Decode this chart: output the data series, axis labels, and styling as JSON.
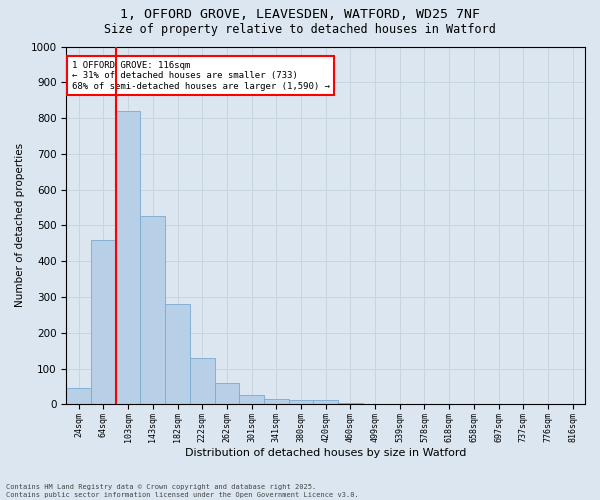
{
  "title_line1": "1, OFFORD GROVE, LEAVESDEN, WATFORD, WD25 7NF",
  "title_line2": "Size of property relative to detached houses in Watford",
  "xlabel": "Distribution of detached houses by size in Watford",
  "ylabel": "Number of detached properties",
  "bar_color": "#b8cfe8",
  "bar_edge_color": "#7aaad0",
  "grid_color": "#c8d4e0",
  "background_color": "#dce6f0",
  "property_line_color": "red",
  "annotation_text": "1 OFFORD GROVE: 116sqm\n← 31% of detached houses are smaller (733)\n68% of semi-detached houses are larger (1,590) →",
  "annotation_box_color": "white",
  "annotation_box_edge": "red",
  "footer_line1": "Contains HM Land Registry data © Crown copyright and database right 2025.",
  "footer_line2": "Contains public sector information licensed under the Open Government Licence v3.0.",
  "bin_labels": [
    "24sqm",
    "64sqm",
    "103sqm",
    "143sqm",
    "182sqm",
    "222sqm",
    "262sqm",
    "301sqm",
    "341sqm",
    "380sqm",
    "420sqm",
    "460sqm",
    "499sqm",
    "539sqm",
    "578sqm",
    "618sqm",
    "658sqm",
    "697sqm",
    "737sqm",
    "776sqm",
    "816sqm"
  ],
  "bar_values": [
    45,
    460,
    820,
    525,
    280,
    130,
    60,
    25,
    15,
    12,
    12,
    5,
    2,
    0,
    0,
    0,
    0,
    0,
    0,
    0,
    0
  ],
  "red_line_bin_idx": 2,
  "ylim": [
    0,
    1000
  ],
  "yticks": [
    0,
    100,
    200,
    300,
    400,
    500,
    600,
    700,
    800,
    900,
    1000
  ]
}
